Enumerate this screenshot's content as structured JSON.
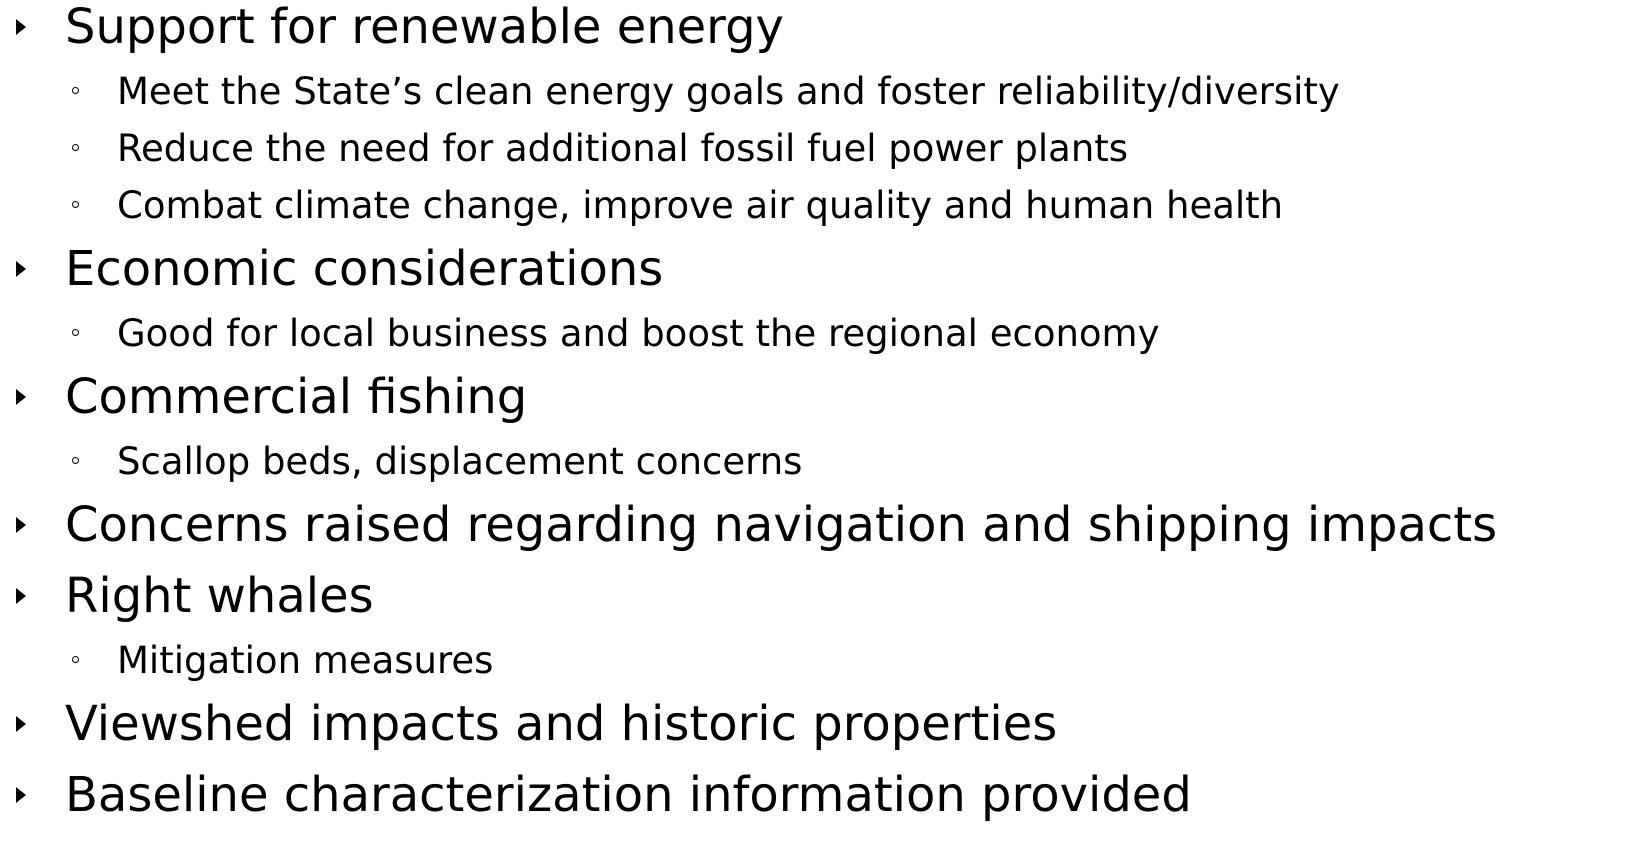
{
  "items": [
    {
      "text": "Support for renewable energy",
      "subitems": [
        "Meet the State’s clean energy goals and foster reliability/diversity",
        "Reduce the need for additional fossil fuel power plants",
        "Combat climate change, improve air quality and human health"
      ]
    },
    {
      "text": "Economic considerations",
      "subitems": [
        "Good for local business and boost the regional economy"
      ]
    },
    {
      "text": "Commercial fishing",
      "subitems": [
        "Scallop beds, displacement concerns"
      ]
    },
    {
      "text": "Concerns raised regarding navigation and shipping impacts",
      "subitems": []
    },
    {
      "text": "Right whales",
      "subitems": [
        "Mitigation measures"
      ]
    },
    {
      "text": "Viewshed impacts and historic properties",
      "subitems": []
    },
    {
      "text": "Baseline characterization information provided",
      "subitems": []
    }
  ]
}
